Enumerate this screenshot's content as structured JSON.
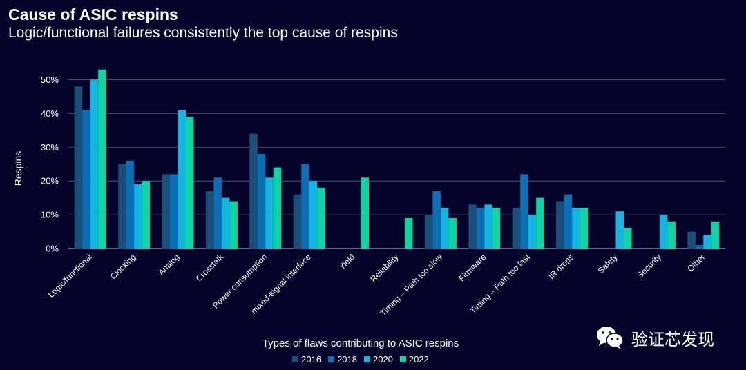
{
  "chart_data": {
    "type": "bar",
    "title": "Cause of ASIC respins",
    "subtitle": "Logic/functional failures consistently the top cause of respins",
    "xlabel": "Types of flaws contributing to ASIC respins",
    "ylabel": "Respins",
    "ylim": [
      0,
      55
    ],
    "yticks": [
      "0%",
      "10%",
      "20%",
      "30%",
      "40%",
      "50%"
    ],
    "ytick_values": [
      0,
      10,
      20,
      30,
      40,
      50
    ],
    "grid": true,
    "legend_position": "bottom-center",
    "categories": [
      "Logic/functional",
      "Clocking",
      "Analog",
      "Crosstalk",
      "Power consumption",
      "mixed-signal interface",
      "Yield",
      "Reliability",
      "Timing – Path too slow",
      "Firmware",
      "Timing – Path too fast",
      "IR drops",
      "Safety",
      "Security",
      "Other"
    ],
    "series": [
      {
        "name": "2016",
        "color": "#1a4f7a",
        "values": [
          48,
          25,
          22,
          17,
          34,
          16,
          null,
          null,
          10,
          13,
          12,
          14,
          null,
          null,
          5
        ]
      },
      {
        "name": "2018",
        "color": "#0b6fb5",
        "values": [
          41,
          26,
          22,
          21,
          28,
          25,
          null,
          null,
          17,
          12,
          22,
          16,
          null,
          null,
          1
        ]
      },
      {
        "name": "2020",
        "color": "#13b6e3",
        "values": [
          50,
          19,
          41,
          15,
          21,
          20,
          null,
          null,
          12,
          13,
          10,
          12,
          11,
          10,
          4
        ]
      },
      {
        "name": "2022",
        "color": "#0fd3a0",
        "values": [
          53,
          20,
          39,
          14,
          24,
          18,
          21,
          9,
          9,
          12,
          15,
          12,
          6,
          8,
          8
        ]
      }
    ]
  },
  "watermark": {
    "text": "验证芯发现",
    "icon": "wechat-icon"
  }
}
